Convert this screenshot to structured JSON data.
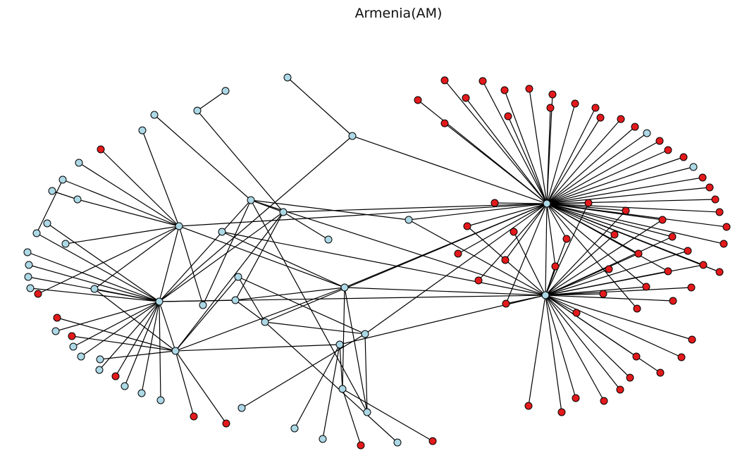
{
  "title": "Armenia(AM)",
  "colors": {
    "node_light": "#add8e6",
    "node_red": "#e31a1c",
    "node_stroke": "#000000",
    "edge": "#000000",
    "background": "#ffffff"
  },
  "legend": null
}
